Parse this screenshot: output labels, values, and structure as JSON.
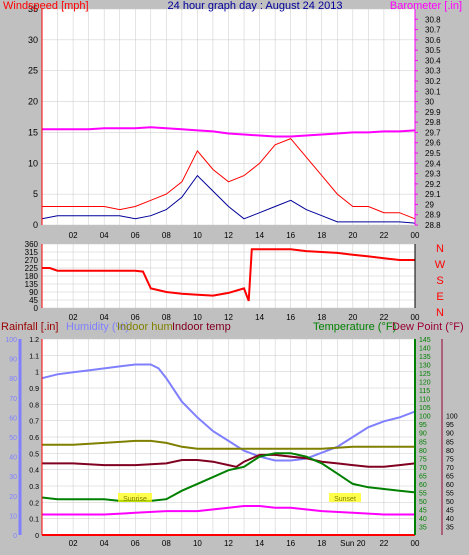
{
  "colors": {
    "background": "#c0c0c0",
    "plot_bg": "#ffffff",
    "grid": "#c8c8c8",
    "red": "#ff0000",
    "blue": "#0000cc",
    "magenta": "#ff00ff",
    "dark_blue": "#000099",
    "light_blue": "#8080ff",
    "olive": "#808000",
    "maroon": "#800020",
    "green": "#008000",
    "dew_maroon": "#990033",
    "yellow": "#ffff00"
  },
  "chart_data": [
    {
      "type": "line",
      "title": "24 hour graph day : August 24 2013",
      "ylabel_left": "Windspeed [mph]",
      "ylabel_right": "Barometer [.in]",
      "ylim_left": [
        0,
        35
      ],
      "ylim_right": [
        28.8,
        30.9
      ],
      "left_ticks": [
        0,
        5,
        10,
        15,
        20,
        25,
        30,
        35
      ],
      "right_ticks": [
        "28.8",
        "28.9",
        "29",
        "29.1",
        "29.2",
        "29.3",
        "29.4",
        "29.5",
        "29.6",
        "29.7",
        "29.8",
        "29.9",
        "30",
        "30.1",
        "30.2",
        "30.3",
        "30.4",
        "30.5",
        "30.6",
        "30.7",
        "30.8"
      ],
      "x_ticks": [
        "02",
        "04",
        "06",
        "08",
        "10",
        "12",
        "14",
        "16",
        "18",
        "20",
        "22",
        "00"
      ],
      "series": [
        {
          "key": "gust",
          "axis": "left",
          "x": [
            0,
            1,
            2,
            3,
            4,
            5,
            6,
            7,
            8,
            9,
            10,
            11,
            12,
            13,
            14,
            15,
            16,
            17,
            18,
            19,
            20,
            21,
            22,
            23,
            24
          ],
          "values": [
            3,
            3,
            3,
            3,
            3,
            2.5,
            3,
            4,
            5,
            7,
            12,
            9,
            7,
            8,
            10,
            13,
            14,
            11,
            8,
            5,
            3,
            3,
            2,
            2,
            1
          ]
        },
        {
          "key": "average",
          "axis": "left",
          "x": [
            0,
            1,
            2,
            3,
            4,
            5,
            6,
            7,
            8,
            9,
            10,
            11,
            12,
            13,
            14,
            15,
            16,
            17,
            18,
            19,
            20,
            21,
            22,
            23,
            24
          ],
          "values": [
            1,
            1.5,
            1.5,
            1.5,
            1.5,
            1.5,
            1,
            1.5,
            2.5,
            4.5,
            8,
            5.5,
            3,
            1,
            2,
            3,
            4,
            2.5,
            1.5,
            0.5,
            0.5,
            0.5,
            0.5,
            0.5,
            0.3
          ]
        },
        {
          "key": "barometer",
          "axis": "right",
          "x": [
            0,
            1,
            2,
            3,
            4,
            5,
            6,
            7,
            8,
            9,
            10,
            11,
            12,
            13,
            14,
            15,
            16,
            17,
            18,
            19,
            20,
            21,
            22,
            23,
            24
          ],
          "values": [
            29.73,
            29.73,
            29.73,
            29.73,
            29.74,
            29.74,
            29.74,
            29.75,
            29.74,
            29.73,
            29.72,
            29.71,
            29.69,
            29.68,
            29.67,
            29.66,
            29.66,
            29.67,
            29.68,
            29.69,
            29.7,
            29.7,
            29.71,
            29.71,
            29.72
          ]
        }
      ]
    },
    {
      "type": "line",
      "title": "",
      "ylabel_left": "",
      "ylim_left": [
        0,
        360
      ],
      "left_ticks": [
        0,
        45,
        90,
        135,
        180,
        225,
        270,
        315,
        360
      ],
      "compass_labels": [
        "N",
        "W",
        "S",
        "E",
        "N"
      ],
      "x_ticks": [
        "02",
        "04",
        "06",
        "08",
        "10",
        "12",
        "14",
        "16",
        "18",
        "20",
        "22",
        "00"
      ],
      "series": [
        {
          "key": "direction",
          "x": [
            0,
            0.5,
            1,
            2,
            3,
            4,
            5,
            6,
            6.5,
            7,
            8,
            9,
            10,
            11,
            12,
            13,
            13.3,
            13.5,
            14,
            15,
            16,
            17,
            18,
            19,
            20,
            21,
            22,
            23,
            24
          ],
          "values": [
            225,
            225,
            210,
            210,
            210,
            210,
            210,
            210,
            205,
            110,
            90,
            80,
            75,
            70,
            85,
            110,
            40,
            330,
            330,
            330,
            330,
            320,
            315,
            310,
            300,
            290,
            280,
            270,
            270
          ]
        }
      ]
    },
    {
      "type": "line",
      "title": "",
      "left_labels": [
        "Rainfall [.in]",
        "Humidity (%)",
        "Indoor hum",
        "Indoor temp"
      ],
      "right_labels": [
        "Temperature (°F)",
        "Dew Point (°F)"
      ],
      "ylim_rain": [
        0,
        1.2
      ],
      "ylim_humidity": [
        0,
        100
      ],
      "ylim_temperature": [
        30,
        145
      ],
      "rain_ticks": [
        "0",
        "0.1",
        "0.2",
        "0.3",
        "0.4",
        "0.5",
        "0.6",
        "0.7",
        "0.8",
        "0.9",
        "1",
        "1.1",
        "1.2"
      ],
      "humidity_ticks": [
        0,
        10,
        20,
        30,
        40,
        50,
        60,
        70,
        80,
        90,
        100
      ],
      "temp_ticks_green": [
        35,
        40,
        45,
        50,
        55,
        60,
        65,
        70,
        75,
        80,
        85,
        90,
        95,
        100,
        105,
        110,
        115,
        120,
        125,
        130,
        135,
        140,
        145
      ],
      "temp_ticks_right": [
        35,
        40,
        45,
        50,
        55,
        60,
        65,
        70,
        75,
        80,
        85,
        90,
        95,
        100
      ],
      "x_ticks": [
        "02",
        "04",
        "06",
        "08",
        "10",
        "12",
        "14",
        "16",
        "18",
        "Sun 20",
        "22",
        "00"
      ],
      "annotations": [
        "Sunrise",
        "Sunset"
      ],
      "series": [
        {
          "key": "humidity",
          "axis": "humidity",
          "x": [
            0,
            1,
            2,
            3,
            4,
            5,
            6,
            7,
            7.5,
            8,
            9,
            10,
            11,
            12,
            13,
            14,
            15,
            16,
            17,
            18,
            19,
            20,
            21,
            22,
            23,
            24
          ],
          "values": [
            80,
            82,
            83,
            84,
            85,
            86,
            87,
            87,
            85,
            80,
            68,
            60,
            53,
            48,
            43,
            40,
            38,
            38,
            39,
            42,
            45,
            50,
            55,
            58,
            60,
            63
          ]
        },
        {
          "key": "indoor_hum",
          "axis": "humidity",
          "x": [
            0,
            2,
            4,
            6,
            7,
            8,
            9,
            10,
            12,
            14,
            16,
            18,
            20,
            22,
            24
          ],
          "values": [
            46,
            46,
            47,
            48,
            48,
            47,
            45,
            44,
            44,
            44,
            44,
            44,
            45,
            45,
            45
          ]
        },
        {
          "key": "indoor_temp",
          "axis": "temperature",
          "x": [
            0,
            2,
            4,
            6,
            8,
            9,
            10,
            11,
            12,
            12.5,
            13,
            14,
            15,
            16,
            17,
            18,
            19,
            20,
            21,
            22,
            23,
            24
          ],
          "values": [
            72,
            72,
            71,
            71,
            72,
            74,
            74,
            73,
            71,
            70,
            73,
            77,
            77,
            76,
            75,
            73,
            72,
            71,
            70,
            70,
            71,
            72
          ]
        },
        {
          "key": "temperature",
          "axis": "temperature",
          "x": [
            0,
            1,
            2,
            3,
            4,
            5,
            6,
            7,
            8,
            9,
            10,
            11,
            12,
            13,
            14,
            15,
            16,
            17,
            18,
            19,
            20,
            21,
            22,
            23,
            24
          ],
          "values": [
            52,
            51,
            51,
            51,
            51,
            50,
            50,
            50,
            51,
            56,
            60,
            64,
            68,
            70,
            76,
            78,
            78,
            76,
            72,
            66,
            60,
            58,
            57,
            56,
            55
          ]
        },
        {
          "key": "dew_point",
          "axis": "temperature",
          "x": [
            0,
            2,
            4,
            6,
            8,
            10,
            12,
            13,
            14,
            15,
            16,
            18,
            20,
            22,
            24
          ],
          "values": [
            42,
            42,
            42,
            43,
            44,
            44,
            46,
            47,
            47,
            46,
            46,
            44,
            43,
            42,
            42
          ]
        },
        {
          "key": "rainfall",
          "axis": "rain",
          "x": [
            0,
            24
          ],
          "values": [
            0,
            0
          ]
        }
      ]
    }
  ]
}
